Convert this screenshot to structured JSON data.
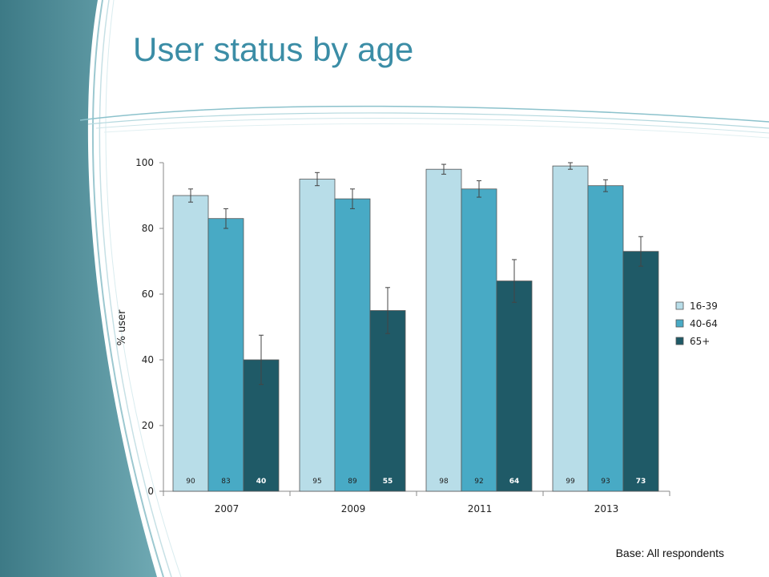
{
  "slide": {
    "title": "User status by age",
    "footnote": "Base: All respondents",
    "colors": {
      "title": "#3b8da6",
      "panel_dark": "#3f7f8c",
      "panel_light": "#7fb3bd"
    }
  },
  "chart_data": {
    "type": "bar",
    "categories": [
      "2007",
      "2009",
      "2011",
      "2013"
    ],
    "series": [
      {
        "name": "16-39",
        "color": "#b8dde8",
        "values": [
          90,
          95,
          98,
          99
        ],
        "errors": [
          2,
          2,
          1.5,
          1
        ],
        "value_labels": [
          "90",
          "95",
          "98",
          "99"
        ],
        "label_bold": false
      },
      {
        "name": "40-64",
        "color": "#48aac5",
        "values": [
          83,
          89,
          92,
          93
        ],
        "errors": [
          3,
          3,
          2.5,
          1.8
        ],
        "value_labels": [
          "83",
          "89",
          "92",
          "93"
        ],
        "label_bold": false
      },
      {
        "name": "65+",
        "color": "#1f5a67",
        "values": [
          40,
          55,
          64,
          73
        ],
        "errors": [
          7.5,
          7,
          6.5,
          4.5
        ],
        "value_labels": [
          "40",
          "55",
          "64",
          "73"
        ],
        "label_bold": true
      }
    ],
    "ylabel": "% user",
    "xlabel": "",
    "ylim": [
      0,
      100
    ],
    "yticks": [
      0,
      20,
      40,
      60,
      80,
      100
    ],
    "grid": false,
    "legend": "right"
  }
}
